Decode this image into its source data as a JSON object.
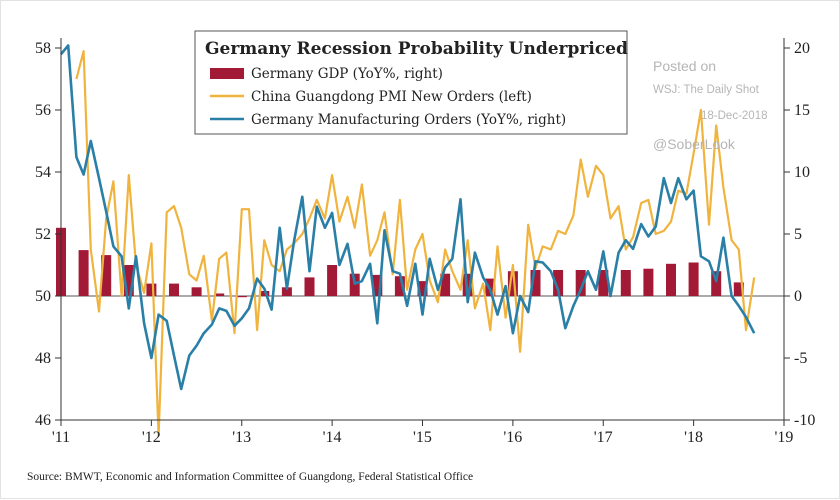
{
  "chart_data": {
    "type": "bar+line",
    "title": "Germany Recession Probability Underpriced",
    "source": "Source: BMWT, Economic and Information Committee of Guangdong, Federal Statistical Office",
    "watermark": {
      "lines": [
        "Posted on",
        "WSJ: The Daily Shot",
        "18-Dec-2018",
        "@SoberLook"
      ]
    },
    "x_axis": {
      "range": [
        2011.0,
        2019.0
      ],
      "tick_values": [
        2011,
        2012,
        2013,
        2014,
        2015,
        2016,
        2017,
        2018,
        2019
      ],
      "tick_labels": [
        "'11",
        "'12",
        "'13",
        "'14",
        "'15",
        "'16",
        "'17",
        "'18",
        "'19"
      ]
    },
    "y_left": {
      "range": [
        46,
        58
      ],
      "tick_values": [
        46,
        48,
        50,
        52,
        54,
        56,
        58
      ],
      "tick_labels": [
        "46",
        "48",
        "50",
        "52",
        "54",
        "56",
        "58"
      ]
    },
    "y_right": {
      "range": [
        -10,
        20
      ],
      "tick_values": [
        -10,
        -5,
        0,
        5,
        10,
        15,
        20
      ],
      "tick_labels": [
        "-10",
        "-5",
        "0",
        "5",
        "10",
        "15",
        "20"
      ]
    },
    "legend_position": "top-center",
    "colors": {
      "gdp": "#a21a35",
      "pmi": "#f0b43e",
      "orders": "#2a7fa7",
      "axis": "#333333"
    },
    "series": [
      {
        "key": "gdp",
        "name": "Germany GDP (YoY%, right)",
        "kind": "bar",
        "axis": "right",
        "x": [
          2011.0,
          2011.25,
          2011.5,
          2011.75,
          2012.0,
          2012.25,
          2012.5,
          2012.75,
          2013.0,
          2013.25,
          2013.5,
          2013.75,
          2014.0,
          2014.25,
          2014.5,
          2014.75,
          2015.0,
          2015.25,
          2015.5,
          2015.75,
          2016.0,
          2016.25,
          2016.5,
          2016.75,
          2017.0,
          2017.25,
          2017.5,
          2017.75,
          2018.0,
          2018.25,
          2018.5
        ],
        "values": [
          5.5,
          3.7,
          3.3,
          2.5,
          1.0,
          1.0,
          0.7,
          0.2,
          -0.1,
          0.4,
          0.7,
          1.5,
          2.5,
          1.8,
          1.7,
          1.6,
          1.2,
          1.8,
          1.8,
          1.4,
          2.0,
          2.1,
          2.1,
          2.1,
          2.1,
          2.1,
          2.2,
          2.6,
          2.7,
          2.0,
          1.1
        ]
      },
      {
        "key": "pmi",
        "name": "China Guangdong PMI New Orders (left)",
        "kind": "line",
        "axis": "left",
        "x": [
          2011.17,
          2011.25,
          2011.33,
          2011.42,
          2011.5,
          2011.58,
          2011.67,
          2011.75,
          2011.83,
          2011.92,
          2012.0,
          2012.08,
          2012.17,
          2012.25,
          2012.33,
          2012.42,
          2012.5,
          2012.58,
          2012.67,
          2012.75,
          2012.83,
          2012.92,
          2013.0,
          2013.08,
          2013.17,
          2013.25,
          2013.33,
          2013.42,
          2013.5,
          2013.58,
          2013.67,
          2013.75,
          2013.83,
          2013.92,
          2014.0,
          2014.08,
          2014.17,
          2014.25,
          2014.33,
          2014.42,
          2014.5,
          2014.58,
          2014.67,
          2014.75,
          2014.83,
          2014.92,
          2015.0,
          2015.08,
          2015.17,
          2015.25,
          2015.33,
          2015.42,
          2015.5,
          2015.58,
          2015.67,
          2015.75,
          2015.83,
          2015.92,
          2016.0,
          2016.08,
          2016.17,
          2016.25,
          2016.33,
          2016.42,
          2016.5,
          2016.58,
          2016.67,
          2016.75,
          2016.83,
          2016.92,
          2017.0,
          2017.08,
          2017.17,
          2017.25,
          2017.33,
          2017.42,
          2017.5,
          2017.58,
          2017.67,
          2017.75,
          2017.83,
          2017.92,
          2018.0,
          2018.08,
          2018.17,
          2018.25,
          2018.33,
          2018.42,
          2018.5,
          2018.58,
          2018.67
        ],
        "values": [
          57.0,
          57.9,
          51.5,
          49.5,
          52.5,
          53.7,
          50.0,
          53.9,
          51.0,
          50.1,
          51.7,
          45.5,
          52.7,
          52.9,
          52.2,
          50.7,
          50.5,
          51.3,
          49.2,
          51.2,
          51.4,
          48.8,
          52.8,
          52.8,
          48.9,
          51.8,
          51.0,
          50.8,
          51.5,
          51.7,
          52.0,
          52.5,
          53.1,
          52.5,
          53.9,
          52.4,
          53.2,
          52.2,
          53.6,
          51.3,
          51.8,
          52.7,
          50.7,
          53.1,
          50.2,
          51.5,
          52.0,
          50.5,
          49.8,
          51.5,
          50.8,
          50.2,
          51.8,
          49.6,
          50.4,
          48.9,
          51.6,
          49.3,
          51.0,
          48.2,
          52.3,
          50.9,
          51.6,
          51.5,
          52.1,
          52.0,
          52.6,
          54.4,
          53.2,
          54.2,
          53.9,
          52.5,
          52.9,
          51.5,
          51.9,
          53.0,
          53.1,
          52.0,
          52.1,
          52.4,
          53.4,
          53.3,
          54.6,
          56.0,
          52.3,
          55.5,
          53.5,
          51.8,
          51.5,
          48.9,
          50.6
        ]
      },
      {
        "key": "orders",
        "name": "Germany Manufacturing Orders (YoY%, right)",
        "kind": "line",
        "axis": "right",
        "x": [
          2011.0,
          2011.08,
          2011.17,
          2011.25,
          2011.33,
          2011.42,
          2011.5,
          2011.58,
          2011.67,
          2011.75,
          2011.83,
          2011.92,
          2012.0,
          2012.08,
          2012.17,
          2012.25,
          2012.33,
          2012.42,
          2012.5,
          2012.58,
          2012.67,
          2012.75,
          2012.83,
          2012.92,
          2013.0,
          2013.08,
          2013.17,
          2013.25,
          2013.33,
          2013.42,
          2013.5,
          2013.58,
          2013.67,
          2013.75,
          2013.83,
          2013.92,
          2014.0,
          2014.08,
          2014.17,
          2014.25,
          2014.33,
          2014.42,
          2014.5,
          2014.58,
          2014.67,
          2014.75,
          2014.83,
          2014.92,
          2015.0,
          2015.08,
          2015.17,
          2015.25,
          2015.33,
          2015.42,
          2015.5,
          2015.58,
          2015.67,
          2015.75,
          2015.83,
          2015.92,
          2016.0,
          2016.08,
          2016.17,
          2016.25,
          2016.33,
          2016.42,
          2016.5,
          2016.58,
          2016.67,
          2016.75,
          2016.83,
          2016.92,
          2017.0,
          2017.08,
          2017.17,
          2017.25,
          2017.33,
          2017.42,
          2017.5,
          2017.58,
          2017.67,
          2017.75,
          2017.83,
          2017.92,
          2018.0,
          2018.08,
          2018.17,
          2018.25,
          2018.33,
          2018.42,
          2018.5,
          2018.58,
          2018.67
        ],
        "values": [
          19.5,
          20.2,
          11.2,
          9.8,
          12.5,
          9.5,
          6.8,
          4.0,
          3.2,
          -1.0,
          3.2,
          -2.2,
          -5.0,
          -1.5,
          -2.0,
          -4.8,
          -7.5,
          -4.8,
          -4.0,
          -3.0,
          -2.3,
          -1.0,
          -1.2,
          -2.4,
          -1.8,
          -1.0,
          1.4,
          0.6,
          -1.1,
          5.5,
          0.6,
          4.5,
          8.0,
          2.0,
          7.2,
          5.5,
          6.7,
          2.5,
          4.2,
          1.0,
          1.2,
          2.6,
          -2.2,
          5.3,
          2.0,
          1.8,
          -0.8,
          2.6,
          -1.5,
          3.0,
          0.5,
          2.3,
          3.0,
          7.8,
          -0.5,
          3.5,
          1.5,
          0.5,
          -1.5,
          0.8,
          -3.0,
          0.0,
          -1.3,
          2.8,
          2.7,
          2.0,
          0.5,
          -2.6,
          -0.8,
          0.5,
          2.0,
          0.5,
          3.6,
          0.0,
          3.5,
          4.5,
          3.8,
          5.8,
          4.8,
          5.6,
          9.5,
          7.5,
          9.5,
          7.8,
          8.5,
          3.2,
          2.8,
          1.2,
          4.7,
          0.0,
          -0.8,
          -1.7,
          -3.0
        ]
      }
    ]
  }
}
